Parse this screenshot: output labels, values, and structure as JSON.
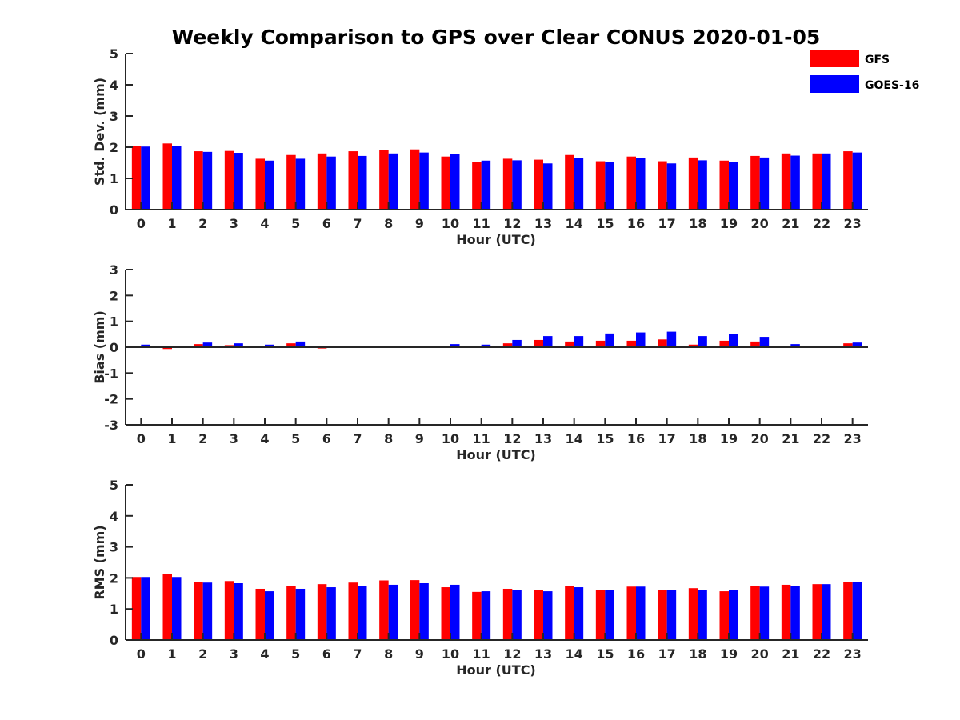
{
  "chart_title": "Weekly Comparison to GPS over Clear CONUS 2020-01-05",
  "legend": {
    "placement": "top-right",
    "entries": [
      {
        "label": "GFS",
        "color": "#ff0000"
      },
      {
        "label": "GOES-16",
        "color": "#0000ff"
      }
    ]
  },
  "chart_data": [
    {
      "type": "bar",
      "title": "",
      "xlabel": "Hour (UTC)",
      "ylabel": "Std. Dev. (mm)",
      "ylim": [
        0,
        5
      ],
      "yticks": [
        0,
        1,
        2,
        3,
        4,
        5
      ],
      "grid": false,
      "categories": [
        "0",
        "1",
        "2",
        "3",
        "4",
        "5",
        "6",
        "7",
        "8",
        "9",
        "10",
        "11",
        "12",
        "13",
        "14",
        "15",
        "16",
        "17",
        "18",
        "19",
        "20",
        "21",
        "22",
        "23"
      ],
      "series": [
        {
          "name": "GFS",
          "color": "#ff0000",
          "values": [
            2.03,
            2.12,
            1.87,
            1.88,
            1.63,
            1.75,
            1.8,
            1.87,
            1.92,
            1.93,
            1.7,
            1.53,
            1.63,
            1.6,
            1.75,
            1.55,
            1.7,
            1.55,
            1.67,
            1.57,
            1.72,
            1.8,
            1.8,
            1.87
          ]
        },
        {
          "name": "GOES-16",
          "color": "#0000ff",
          "values": [
            2.02,
            2.05,
            1.85,
            1.82,
            1.57,
            1.63,
            1.7,
            1.72,
            1.8,
            1.83,
            1.77,
            1.57,
            1.58,
            1.48,
            1.65,
            1.53,
            1.65,
            1.48,
            1.58,
            1.53,
            1.67,
            1.73,
            1.8,
            1.83
          ]
        }
      ]
    },
    {
      "type": "bar",
      "title": "",
      "xlabel": "Hour (UTC)",
      "ylabel": "Bias (mm)",
      "ylim": [
        -3,
        3
      ],
      "yticks": [
        -3,
        -2,
        -1,
        0,
        1,
        2,
        3
      ],
      "grid": false,
      "baseline": 0,
      "categories": [
        "0",
        "1",
        "2",
        "3",
        "4",
        "5",
        "6",
        "7",
        "8",
        "9",
        "10",
        "11",
        "12",
        "13",
        "14",
        "15",
        "16",
        "17",
        "18",
        "19",
        "20",
        "21",
        "22",
        "23"
      ],
      "series": [
        {
          "name": "GFS",
          "color": "#ff0000",
          "values": [
            0.0,
            -0.07,
            0.12,
            0.08,
            0.03,
            0.15,
            -0.05,
            -0.02,
            0.0,
            -0.02,
            0.02,
            0.03,
            0.15,
            0.28,
            0.22,
            0.25,
            0.25,
            0.3,
            0.1,
            0.25,
            0.22,
            0.0,
            0.0,
            0.15
          ]
        },
        {
          "name": "GOES-16",
          "color": "#0000ff",
          "values": [
            0.1,
            0.0,
            0.18,
            0.15,
            0.1,
            0.22,
            0.0,
            0.0,
            0.03,
            0.03,
            0.12,
            0.1,
            0.28,
            0.43,
            0.43,
            0.53,
            0.57,
            0.6,
            0.43,
            0.5,
            0.4,
            0.12,
            0.03,
            0.18
          ]
        }
      ]
    },
    {
      "type": "bar",
      "title": "",
      "xlabel": "Hour (UTC)",
      "ylabel": "RMS (mm)",
      "ylim": [
        0,
        5
      ],
      "yticks": [
        0,
        1,
        2,
        3,
        4,
        5
      ],
      "grid": false,
      "categories": [
        "0",
        "1",
        "2",
        "3",
        "4",
        "5",
        "6",
        "7",
        "8",
        "9",
        "10",
        "11",
        "12",
        "13",
        "14",
        "15",
        "16",
        "17",
        "18",
        "19",
        "20",
        "21",
        "22",
        "23"
      ],
      "series": [
        {
          "name": "GFS",
          "color": "#ff0000",
          "values": [
            2.03,
            2.12,
            1.87,
            1.9,
            1.65,
            1.75,
            1.8,
            1.85,
            1.92,
            1.93,
            1.7,
            1.55,
            1.65,
            1.62,
            1.75,
            1.6,
            1.72,
            1.6,
            1.67,
            1.57,
            1.75,
            1.78,
            1.8,
            1.88
          ]
        },
        {
          "name": "GOES-16",
          "color": "#0000ff",
          "values": [
            2.03,
            2.03,
            1.85,
            1.83,
            1.57,
            1.65,
            1.7,
            1.73,
            1.78,
            1.83,
            1.78,
            1.57,
            1.62,
            1.57,
            1.7,
            1.62,
            1.72,
            1.6,
            1.62,
            1.62,
            1.72,
            1.73,
            1.8,
            1.88
          ]
        }
      ]
    }
  ]
}
